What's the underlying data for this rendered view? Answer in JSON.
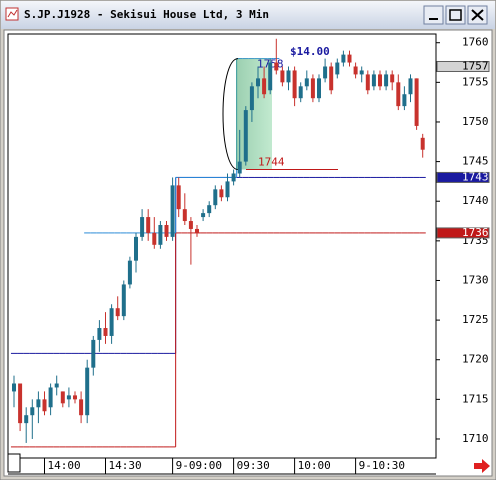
{
  "window_title": "S.JP.J1928 - Sekisui House Ltd, 3 Min",
  "chart_data": {
    "type": "candlestick",
    "categories": [
      null,
      null,
      null,
      null,
      null,
      "14:00",
      null,
      null,
      null,
      null,
      null,
      null,
      null,
      null,
      null,
      "14:30",
      null,
      null,
      null,
      null,
      null,
      null,
      null,
      null,
      null,
      null,
      "9-09:00",
      null,
      null,
      null,
      null,
      null,
      null,
      null,
      null,
      null,
      "09:30",
      null,
      null,
      null,
      null,
      null,
      null,
      null,
      null,
      null,
      "10:00",
      null,
      null,
      null,
      null,
      null,
      null,
      null,
      null,
      null,
      "9-10:30",
      null,
      null,
      null,
      null,
      null,
      null,
      null,
      null,
      null,
      null,
      null
    ],
    "open": [
      1716,
      1717,
      1712,
      1713,
      1714,
      1715,
      1714,
      1716.5,
      1716,
      1715,
      1715.5,
      1715,
      1713,
      1719,
      1722.5,
      1724,
      1723,
      1726.5,
      1725.5,
      1729.5,
      1732.5,
      1735.5,
      1738,
      1736,
      1734.5,
      1737,
      1735.5,
      1742,
      1739,
      1737.5,
      1736.5,
      1738,
      1738.5,
      1739.5,
      1741.5,
      1740.5,
      1742.5,
      1743.5,
      1745,
      1751.5,
      1754.5,
      1755.5,
      1754,
      1757.5,
      1756.5,
      1755,
      1756.5,
      1753,
      1754.5,
      1755.5,
      1753,
      1755.5,
      1757,
      1756,
      1757.5,
      1758.5,
      1757,
      1756,
      1756,
      1754.5,
      1756,
      1754.5,
      1756,
      1755,
      1752,
      1753.5,
      1755.5,
      1748
    ],
    "high": [
      1718,
      1717,
      1714,
      1715,
      1716,
      1716,
      1717,
      1718,
      1716,
      1716.5,
      1716,
      1716,
      1720,
      1723,
      1725,
      1726,
      1727,
      1728,
      1730,
      1733,
      1736,
      1739,
      1739,
      1738,
      1737.5,
      1737.5,
      1743,
      1743,
      1741,
      1738,
      1737,
      1739,
      1740,
      1742,
      1742,
      1743.5,
      1744,
      1749,
      1752,
      1755,
      1757,
      1757,
      1758,
      1760.5,
      1757,
      1757,
      1757,
      1755,
      1756.5,
      1756,
      1756,
      1758,
      1757.5,
      1758,
      1759,
      1759,
      1757.5,
      1757,
      1756.5,
      1756.5,
      1756.5,
      1756.5,
      1756.5,
      1756,
      1754.5,
      1756,
      1755.5,
      1748.5
    ],
    "low": [
      1714,
      1711,
      1709.5,
      1710,
      1712,
      1713,
      1713,
      1715.5,
      1714,
      1714,
      1714.5,
      1712,
      1712,
      1718,
      1721,
      1722,
      1722,
      1725,
      1725,
      1729,
      1731,
      1735,
      1735,
      1734,
      1734,
      1735,
      1735,
      1738,
      1737,
      1732,
      1735.5,
      1737.5,
      1738,
      1739,
      1740,
      1740,
      1742,
      1743,
      1744.5,
      1750,
      1753,
      1753,
      1753.5,
      1756,
      1754.5,
      1754,
      1752,
      1752.5,
      1754,
      1752.5,
      1752.5,
      1755,
      1753.5,
      1755.5,
      1757,
      1757,
      1755.5,
      1755,
      1753.5,
      1754,
      1754,
      1754,
      1754,
      1751.5,
      1751.5,
      1752.5,
      1749,
      1745.5
    ],
    "close": [
      1717,
      1712,
      1713,
      1714,
      1715,
      1713.5,
      1716.5,
      1717,
      1714.5,
      1715.5,
      1715,
      1713,
      1719,
      1722.5,
      1724,
      1723,
      1726.5,
      1725.5,
      1729.5,
      1732.5,
      1735.5,
      1738,
      1736,
      1734.5,
      1737,
      1735.5,
      1742,
      1739,
      1737.5,
      1736.5,
      1736,
      1738.5,
      1739.5,
      1741.5,
      1740.5,
      1742.5,
      1743.5,
      1745,
      1751.5,
      1754.5,
      1755.5,
      1753.5,
      1757.5,
      1756.5,
      1755,
      1756.5,
      1753,
      1754.5,
      1755.5,
      1753,
      1755.5,
      1757,
      1754,
      1757.5,
      1758.5,
      1757.5,
      1756,
      1756.5,
      1754,
      1756,
      1754.5,
      1756,
      1755,
      1752,
      1753.5,
      1755.5,
      1749.5,
      1746.5
    ],
    "up_color": "#1f6f8b",
    "down_color": "#c8322d",
    "levels": [
      {
        "color": "#1a1aa0",
        "values": [
          1720.8,
          1720.8,
          1720.8,
          1720.8,
          1720.8,
          1720.8,
          1720.8,
          1720.8,
          1720.8,
          1720.8,
          1720.8,
          1720.8,
          1720.8,
          1720.8,
          1720.8,
          1720.8,
          1720.8,
          1720.8,
          1720.8,
          1720.8,
          1720.8,
          1720.8,
          1720.8,
          1720.8,
          1720.8,
          1720.8,
          1720.8,
          1743,
          1743,
          1743,
          1743,
          1743,
          1743,
          1743,
          1743,
          1743,
          1743,
          1743,
          1743,
          1743,
          1743,
          1743,
          1743,
          1743,
          1743,
          1743,
          1743,
          1743,
          1743,
          1743,
          1743,
          1743,
          1743,
          1743,
          1743,
          1743,
          1743,
          1743,
          1743,
          1743,
          1743,
          1743,
          1743,
          1743,
          1743,
          1743,
          1743,
          1743
        ]
      },
      {
        "color": "#c01818",
        "values": [
          1709,
          1709,
          1709,
          1709,
          1709,
          1709,
          1709,
          1709,
          1709,
          1709,
          1709,
          1709,
          1709,
          1709,
          1709,
          1709,
          1709,
          1709,
          1709,
          1709,
          1709,
          1709,
          1709,
          1709,
          1709,
          1709,
          1709,
          1736,
          1736,
          1736,
          1736,
          1736,
          1736,
          1736,
          1736,
          1736,
          1736,
          1736,
          1736,
          1736,
          1736,
          1736,
          1736,
          1736,
          1736,
          1736,
          1736,
          1736,
          1736,
          1736,
          1736,
          1736,
          1736,
          1736,
          1736,
          1736,
          1736,
          1736,
          1736,
          1736,
          1736,
          1736,
          1736,
          1736,
          1736,
          1736,
          1736,
          1736
        ]
      },
      {
        "color": "#2a8ad8",
        "values": [
          null,
          null,
          null,
          null,
          null,
          null,
          null,
          null,
          null,
          null,
          null,
          null,
          1736,
          1736,
          1736,
          1736,
          1736,
          1736,
          1736,
          1736,
          1736,
          1736,
          1736,
          1736,
          1736,
          1736,
          1736,
          1743,
          1743,
          1743,
          1743,
          1743,
          1743,
          1743,
          1743,
          1743,
          1743,
          1758,
          1758,
          1758,
          1758,
          1758,
          1758,
          1758,
          null,
          null,
          null,
          null,
          null,
          null,
          null,
          null,
          null,
          null,
          null,
          null,
          null,
          null,
          null,
          null,
          null,
          null,
          null,
          null,
          null,
          null,
          null,
          null
        ]
      }
    ],
    "measure": {
      "high": 1758,
      "low": 1744,
      "change": 14,
      "change_label": "$14.00"
    },
    "price_markers": [
      {
        "value": 1757,
        "color": "#d4d4d4",
        "text_color": "#000000"
      },
      {
        "value": 1743,
        "color": "#1a1aa0",
        "text_color": "#ffffff"
      },
      {
        "value": 1736,
        "color": "#c01818",
        "text_color": "#ffffff"
      }
    ],
    "ylim": [
      1707.6,
      1761.1
    ],
    "yticks": [
      1710,
      1715,
      1720,
      1725,
      1730,
      1735,
      1740,
      1745,
      1750,
      1755,
      1760
    ]
  }
}
